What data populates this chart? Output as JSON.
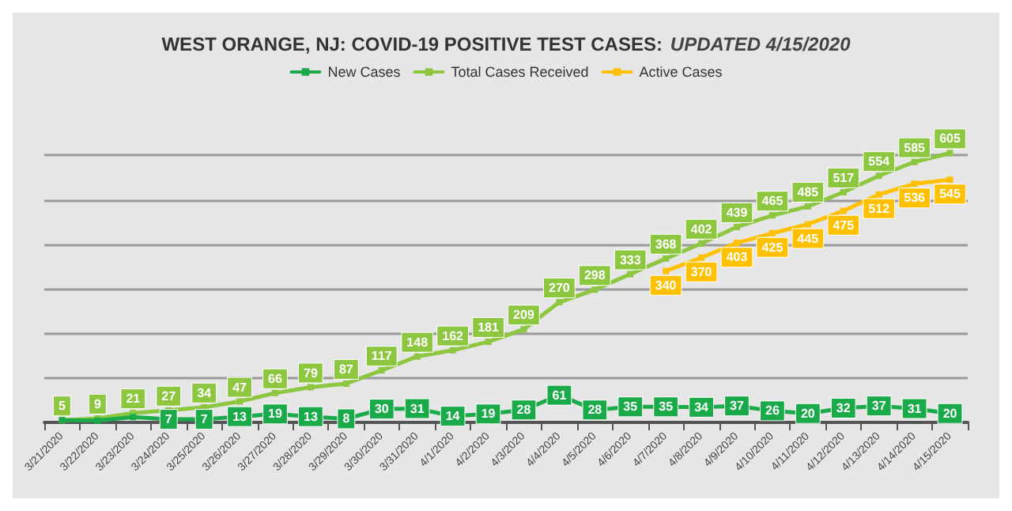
{
  "chart_data": {
    "type": "line",
    "title": "WEST ORANGE, NJ: COVID-19 POSITIVE TEST CASES:",
    "subtitle": "UPDATED 4/15/2020",
    "categories": [
      "3/21/2020",
      "3/22/2020",
      "3/23/2020",
      "3/24/2020",
      "3/25/2020",
      "3/26/2020",
      "3/27/2020",
      "3/28/2020",
      "3/29/2020",
      "3/30/2020",
      "3/31/2020",
      "4/1/2020",
      "4/2/2020",
      "4/3/2020",
      "4/4/2020",
      "4/5/2020",
      "4/6/2020",
      "4/7/2020",
      "4/8/2020",
      "4/9/2020",
      "4/10/2020",
      "4/11/2020",
      "4/12/2020",
      "4/13/2020",
      "4/14/2020",
      "4/15/2020"
    ],
    "series": [
      {
        "name": "New Cases",
        "color": "#1aaa4a",
        "values": [
          5,
          4,
          12,
          7,
          7,
          13,
          19,
          13,
          8,
          30,
          31,
          14,
          19,
          28,
          61,
          28,
          35,
          35,
          34,
          37,
          26,
          20,
          32,
          37,
          31,
          20
        ],
        "value_labels": [
          null,
          null,
          null,
          "7",
          "7",
          "13",
          "19",
          "13",
          "8",
          "30",
          "31",
          "14",
          "19",
          "28",
          "61",
          "28",
          "35",
          "35",
          "34",
          "37",
          "26",
          "20",
          "32",
          "37",
          "31",
          "20"
        ]
      },
      {
        "name": "Total Cases Received",
        "color": "#8dc63f",
        "values": [
          5,
          9,
          21,
          27,
          34,
          47,
          66,
          79,
          87,
          117,
          148,
          162,
          181,
          209,
          270,
          298,
          333,
          368,
          402,
          439,
          465,
          485,
          517,
          554,
          585,
          605
        ]
      },
      {
        "name": "Active Cases",
        "color": "#ffc000",
        "values": [
          null,
          null,
          null,
          null,
          null,
          null,
          null,
          null,
          null,
          null,
          null,
          null,
          null,
          null,
          null,
          null,
          null,
          340,
          370,
          403,
          425,
          445,
          475,
          512,
          536,
          545
        ]
      }
    ],
    "yticks": [
      {
        "value": 0,
        "label": null
      },
      {
        "value": 100,
        "label": null
      },
      {
        "value": 200,
        "label": null
      },
      {
        "value": 300,
        "label": null
      },
      {
        "value": 400,
        "label": null
      },
      {
        "value": 500,
        "label": null
      },
      {
        "value": 600,
        "label": null
      }
    ],
    "tick_labels": "x",
    "grid": "y",
    "legend": "top",
    "marker": "square",
    "line_style": "solid",
    "data_labels": true
  }
}
